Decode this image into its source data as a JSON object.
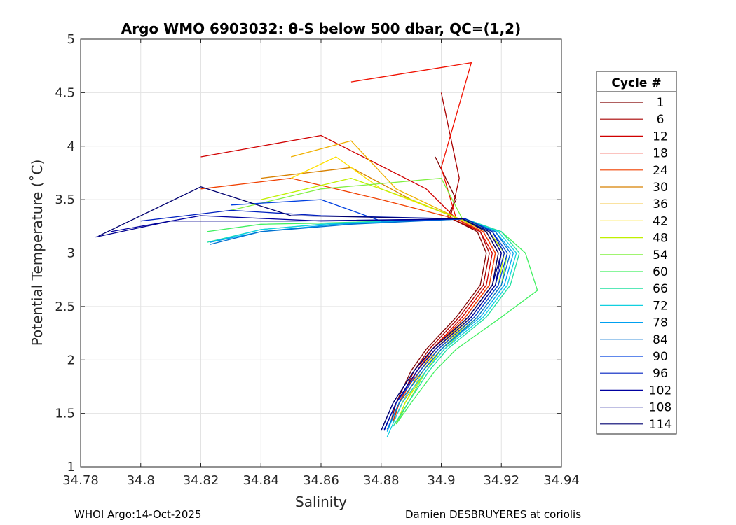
{
  "chart_data": {
    "type": "line",
    "title": "Argo WMO 6903032: θ-S below 500 dbar,  QC=(1,2)",
    "xlabel": "Salinity",
    "ylabel": "Potential Temperature (˚C)",
    "xlim": [
      34.78,
      34.94
    ],
    "ylim": [
      1,
      5
    ],
    "xticks": [
      34.78,
      34.8,
      34.82,
      34.84,
      34.86,
      34.88,
      34.9,
      34.92,
      34.94
    ],
    "xtick_labels": [
      "34.78",
      "34.8",
      "34.82",
      "34.84",
      "34.86",
      "34.88",
      "34.9",
      "34.92",
      "34.94"
    ],
    "yticks": [
      1,
      1.5,
      2,
      2.5,
      3,
      3.5,
      4,
      4.5,
      5
    ],
    "ytick_labels": [
      "1",
      "1.5",
      "2",
      "2.5",
      "3",
      "3.5",
      "4",
      "4.5",
      "5"
    ],
    "grid": true,
    "legend": {
      "title": "Cycle #",
      "placement": "outside-right",
      "entries": [
        {
          "label": "1",
          "color": "#800000"
        },
        {
          "label": "6",
          "color": "#a80000"
        },
        {
          "label": "12",
          "color": "#d00000"
        },
        {
          "label": "18",
          "color": "#f01000"
        },
        {
          "label": "24",
          "color": "#f04000"
        },
        {
          "label": "30",
          "color": "#d88000"
        },
        {
          "label": "36",
          "color": "#f0b000"
        },
        {
          "label": "42",
          "color": "#ffe000"
        },
        {
          "label": "48",
          "color": "#c0f000"
        },
        {
          "label": "54",
          "color": "#80f040"
        },
        {
          "label": "60",
          "color": "#40f060"
        },
        {
          "label": "66",
          "color": "#20e0a0"
        },
        {
          "label": "72",
          "color": "#10d0e0"
        },
        {
          "label": "78",
          "color": "#00a0f0"
        },
        {
          "label": "84",
          "color": "#0070d0"
        },
        {
          "label": "90",
          "color": "#0040e0"
        },
        {
          "label": "96",
          "color": "#0020c0"
        },
        {
          "label": "102",
          "color": "#0000a0"
        },
        {
          "label": "108",
          "color": "#000090"
        },
        {
          "label": "114",
          "color": "#000070"
        }
      ]
    },
    "series": [
      {
        "name": "1",
        "color": "#800000",
        "salinity": [
          34.898,
          34.905,
          34.902,
          34.905,
          34.912,
          34.915,
          34.913,
          34.905,
          34.895,
          34.89,
          34.885,
          34.883
        ],
        "theta": [
          3.9,
          3.5,
          3.34,
          3.3,
          3.2,
          3.0,
          2.7,
          2.4,
          2.1,
          1.9,
          1.6,
          1.4
        ]
      },
      {
        "name": "6",
        "color": "#a80000",
        "salinity": [
          34.9,
          34.906,
          34.903,
          34.906,
          34.913,
          34.916,
          34.914,
          34.906,
          34.896,
          34.891,
          34.886,
          34.884
        ],
        "theta": [
          4.5,
          3.7,
          3.33,
          3.29,
          3.2,
          3.0,
          2.7,
          2.4,
          2.1,
          1.9,
          1.6,
          1.42
        ]
      },
      {
        "name": "12",
        "color": "#d00000",
        "salinity": [
          34.82,
          34.86,
          34.895,
          34.905,
          34.913,
          34.917,
          34.915,
          34.907,
          34.897,
          34.892,
          34.886,
          34.884
        ],
        "theta": [
          3.9,
          4.1,
          3.6,
          3.32,
          3.2,
          3.0,
          2.7,
          2.4,
          2.1,
          1.9,
          1.6,
          1.43
        ]
      },
      {
        "name": "18",
        "color": "#f01000",
        "salinity": [
          34.87,
          34.91,
          34.9,
          34.905,
          34.914,
          34.918,
          34.916,
          34.908,
          34.897,
          34.892,
          34.886,
          34.884
        ],
        "theta": [
          4.6,
          4.78,
          3.8,
          3.32,
          3.2,
          3.0,
          2.7,
          2.4,
          2.1,
          1.9,
          1.6,
          1.42
        ]
      },
      {
        "name": "24",
        "color": "#f04000",
        "salinity": [
          34.82,
          34.85,
          34.88,
          34.905,
          34.914,
          34.918,
          34.916,
          34.908,
          34.897,
          34.892,
          34.886,
          34.884
        ],
        "theta": [
          3.6,
          3.7,
          3.5,
          3.32,
          3.2,
          3.0,
          2.7,
          2.4,
          2.1,
          1.9,
          1.6,
          1.42
        ]
      },
      {
        "name": "30",
        "color": "#d88000",
        "salinity": [
          34.84,
          34.87,
          34.89,
          34.906,
          34.915,
          34.919,
          34.917,
          34.909,
          34.898,
          34.893,
          34.887,
          34.884
        ],
        "theta": [
          3.7,
          3.8,
          3.5,
          3.32,
          3.2,
          3.0,
          2.7,
          2.4,
          2.1,
          1.9,
          1.6,
          1.41
        ]
      },
      {
        "name": "36",
        "color": "#f0b000",
        "salinity": [
          34.85,
          34.87,
          34.885,
          34.906,
          34.915,
          34.919,
          34.917,
          34.909,
          34.898,
          34.893,
          34.887,
          34.884
        ],
        "theta": [
          3.9,
          4.05,
          3.6,
          3.32,
          3.2,
          3.0,
          2.7,
          2.4,
          2.1,
          1.9,
          1.6,
          1.41
        ]
      },
      {
        "name": "42",
        "color": "#ffe000",
        "salinity": [
          34.85,
          34.865,
          34.88,
          34.906,
          34.916,
          34.92,
          34.918,
          34.91,
          34.899,
          34.894,
          34.888,
          34.885
        ],
        "theta": [
          3.7,
          3.9,
          3.6,
          3.32,
          3.2,
          3.0,
          2.7,
          2.4,
          2.1,
          1.9,
          1.6,
          1.4
        ]
      },
      {
        "name": "48",
        "color": "#c0f000",
        "salinity": [
          34.84,
          34.87,
          34.89,
          34.906,
          34.916,
          34.921,
          34.919,
          34.911,
          34.9,
          34.895,
          34.888,
          34.885
        ],
        "theta": [
          3.5,
          3.7,
          3.5,
          3.32,
          3.2,
          3.0,
          2.7,
          2.4,
          2.1,
          1.9,
          1.6,
          1.4
        ]
      },
      {
        "name": "54",
        "color": "#80f040",
        "salinity": [
          34.83,
          34.86,
          34.9,
          34.907,
          34.917,
          34.922,
          34.92,
          34.912,
          34.901,
          34.895,
          34.889,
          34.885
        ],
        "theta": [
          3.4,
          3.6,
          3.7,
          3.32,
          3.2,
          3.0,
          2.7,
          2.4,
          2.1,
          1.9,
          1.6,
          1.4
        ]
      },
      {
        "name": "60",
        "color": "#40f060",
        "salinity": [
          34.822,
          34.84,
          34.86,
          34.907,
          34.92,
          34.928,
          34.932,
          34.92,
          34.905,
          34.898,
          34.89,
          34.885
        ],
        "theta": [
          3.2,
          3.27,
          3.28,
          3.32,
          3.2,
          3.0,
          2.65,
          2.4,
          2.1,
          1.9,
          1.6,
          1.4
        ]
      },
      {
        "name": "66",
        "color": "#20e0a0",
        "salinity": [
          34.822,
          34.84,
          34.86,
          34.908,
          34.92,
          34.926,
          34.923,
          34.915,
          34.902,
          34.896,
          34.889,
          34.884
        ],
        "theta": [
          3.1,
          3.22,
          3.27,
          3.32,
          3.2,
          3.0,
          2.7,
          2.4,
          2.1,
          1.9,
          1.6,
          1.38
        ]
      },
      {
        "name": "72",
        "color": "#10d0e0",
        "salinity": [
          34.823,
          34.84,
          34.865,
          34.908,
          34.919,
          34.925,
          34.922,
          34.914,
          34.901,
          34.895,
          34.887,
          34.882
        ],
        "theta": [
          3.1,
          3.22,
          3.28,
          3.32,
          3.2,
          3.0,
          2.7,
          2.4,
          2.1,
          1.9,
          1.6,
          1.28
        ]
      },
      {
        "name": "78",
        "color": "#00a0f0",
        "salinity": [
          34.823,
          34.84,
          34.865,
          34.908,
          34.918,
          34.924,
          34.921,
          34.913,
          34.9,
          34.894,
          34.886,
          34.882
        ],
        "theta": [
          3.1,
          3.2,
          3.27,
          3.32,
          3.2,
          3.0,
          2.7,
          2.4,
          2.1,
          1.9,
          1.6,
          1.33
        ]
      },
      {
        "name": "84",
        "color": "#0070d0",
        "salinity": [
          34.823,
          34.84,
          34.87,
          34.908,
          34.918,
          34.923,
          34.92,
          34.912,
          34.9,
          34.894,
          34.886,
          34.882
        ],
        "theta": [
          3.08,
          3.2,
          3.27,
          3.32,
          3.2,
          3.0,
          2.7,
          2.4,
          2.1,
          1.9,
          1.6,
          1.35
        ]
      },
      {
        "name": "90",
        "color": "#0040e0",
        "salinity": [
          34.83,
          34.86,
          34.88,
          34.908,
          34.917,
          34.922,
          34.919,
          34.911,
          34.899,
          34.893,
          34.885,
          34.881
        ],
        "theta": [
          3.45,
          3.5,
          3.3,
          3.32,
          3.2,
          3.0,
          2.7,
          2.4,
          2.1,
          1.9,
          1.6,
          1.35
        ]
      },
      {
        "name": "96",
        "color": "#0020c0",
        "salinity": [
          34.8,
          34.83,
          34.86,
          34.908,
          34.917,
          34.921,
          34.918,
          34.91,
          34.898,
          34.892,
          34.885,
          34.881
        ],
        "theta": [
          3.3,
          3.4,
          3.35,
          3.32,
          3.2,
          3.0,
          2.7,
          2.4,
          2.1,
          1.9,
          1.6,
          1.34
        ]
      },
      {
        "name": "102",
        "color": "#0000a0",
        "salinity": [
          34.79,
          34.82,
          34.86,
          34.907,
          34.916,
          34.92,
          34.918,
          34.91,
          34.898,
          34.892,
          34.885,
          34.881
        ],
        "theta": [
          3.2,
          3.35,
          3.3,
          3.32,
          3.2,
          3.0,
          2.7,
          2.4,
          2.1,
          1.9,
          1.6,
          1.34
        ]
      },
      {
        "name": "108",
        "color": "#000090",
        "salinity": [
          34.785,
          34.81,
          34.85,
          34.907,
          34.916,
          34.92,
          34.917,
          34.909,
          34.897,
          34.891,
          34.884,
          34.88
        ],
        "theta": [
          3.15,
          3.3,
          3.3,
          3.32,
          3.2,
          3.0,
          2.7,
          2.4,
          2.1,
          1.9,
          1.6,
          1.34
        ]
      },
      {
        "name": "114",
        "color": "#000070",
        "salinity": [
          34.786,
          34.82,
          34.85,
          34.907,
          34.915,
          34.919,
          34.917,
          34.909,
          34.897,
          34.891,
          34.884,
          34.88
        ],
        "theta": [
          3.16,
          3.62,
          3.35,
          3.32,
          3.2,
          3.0,
          2.7,
          2.4,
          2.1,
          1.9,
          1.6,
          1.34
        ]
      }
    ]
  },
  "footer": {
    "left": "WHOI Argo:14-Oct-2025",
    "right": "Damien DESBRUYERES at coriolis"
  }
}
